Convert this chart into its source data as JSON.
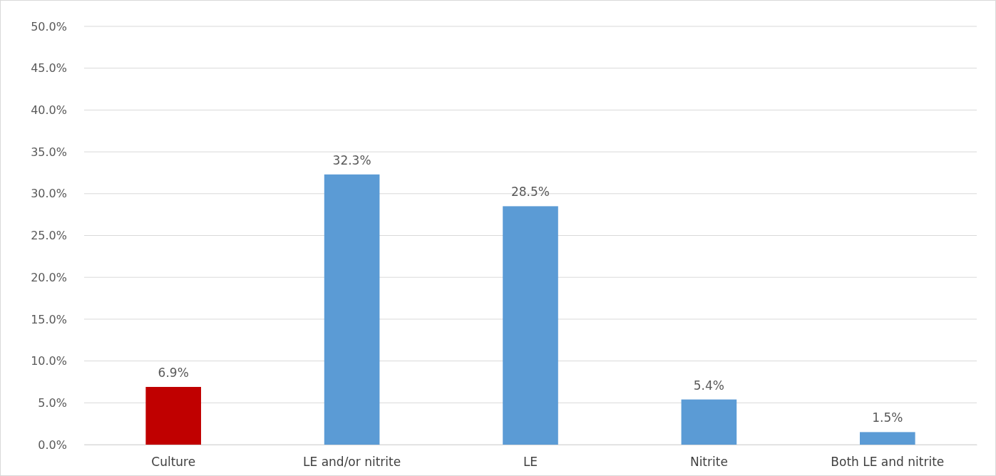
{
  "chart_data": {
    "type": "bar",
    "categories": [
      "Culture",
      "LE and/or nitrite",
      "LE",
      "Nitrite",
      "Both LE and nitrite"
    ],
    "values": [
      6.9,
      32.3,
      28.5,
      5.4,
      1.5
    ],
    "colors": [
      "#c00000",
      "#5b9bd5",
      "#5b9bd5",
      "#5b9bd5",
      "#5b9bd5"
    ],
    "value_labels": [
      "6.9%",
      "32.3%",
      "28.5%",
      "5.4%",
      "1.5%"
    ],
    "ylim": [
      0,
      50
    ],
    "yticks": [
      {
        "value": 0,
        "label": "0.0%"
      },
      {
        "value": 5,
        "label": "5.0%"
      },
      {
        "value": 10,
        "label": "10.0%"
      },
      {
        "value": 15,
        "label": "15.0%"
      },
      {
        "value": 20,
        "label": "20.0%"
      },
      {
        "value": 25,
        "label": "25.0%"
      },
      {
        "value": 30,
        "label": "30.0%"
      },
      {
        "value": 35,
        "label": "35.0%"
      },
      {
        "value": 40,
        "label": "40.0%"
      },
      {
        "value": 45,
        "label": "45.0%"
      },
      {
        "value": 50,
        "label": "50.0%"
      }
    ],
    "grid": "y"
  }
}
